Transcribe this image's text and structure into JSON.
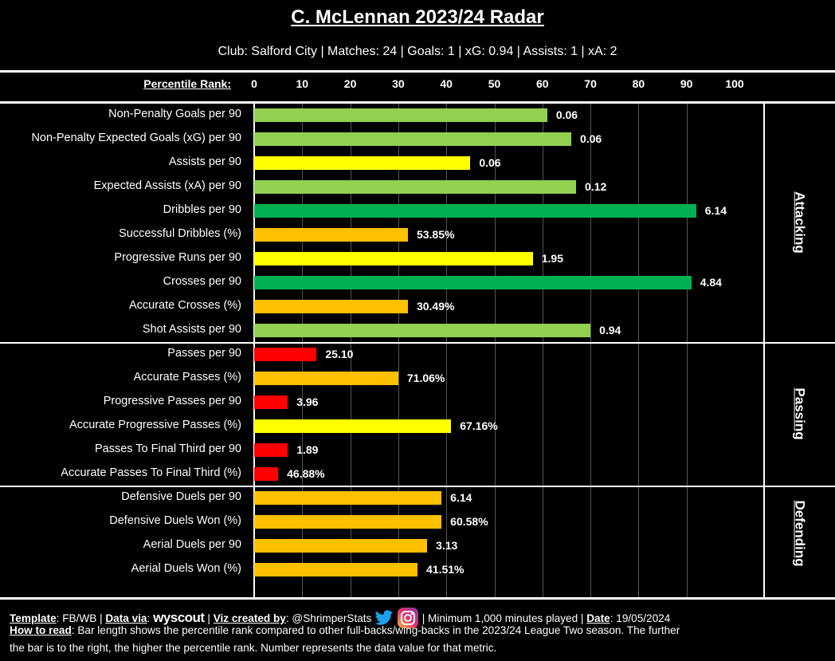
{
  "header": {
    "title": "C. McLennan 2023/24 Radar",
    "subtitle": "Club: Salford City | Matches: 24 | Goals: 1 | xG: 0.94 | Assists: 1 | xA: 2"
  },
  "colors": {
    "light_green": "#92d050",
    "yellow": "#ffff00",
    "dark_green": "#00b050",
    "orange": "#ffc000",
    "red": "#ff0000"
  },
  "chart_data": {
    "type": "bar",
    "orientation": "horizontal",
    "xlabel": "Percentile Rank:",
    "xlim": [
      0,
      100
    ],
    "ticks": [
      "0",
      "10",
      "20",
      "30",
      "40",
      "50",
      "60",
      "70",
      "80",
      "90",
      "100"
    ],
    "sections": [
      {
        "name": "Attacking",
        "rows": [
          {
            "label": "Non-Penalty Goals per 90",
            "percentile": 61,
            "value": "0.06",
            "color": "#92d050"
          },
          {
            "label": "Non-Penalty Expected Goals (xG) per 90",
            "percentile": 66,
            "value": "0.06",
            "color": "#92d050"
          },
          {
            "label": "Assists per 90",
            "percentile": 45,
            "value": "0.06",
            "color": "#ffff00"
          },
          {
            "label": "Expected Assists (xA) per 90",
            "percentile": 67,
            "value": "0.12",
            "color": "#92d050"
          },
          {
            "label": "Dribbles per 90",
            "percentile": 92,
            "value": "6.14",
            "color": "#00b050"
          },
          {
            "label": "Successful Dribbles (%)",
            "percentile": 32,
            "value": "53.85%",
            "color": "#ffc000"
          },
          {
            "label": "Progressive Runs per 90",
            "percentile": 58,
            "value": "1.95",
            "color": "#ffff00"
          },
          {
            "label": "Crosses per 90",
            "percentile": 91,
            "value": "4.84",
            "color": "#00b050"
          },
          {
            "label": "Accurate Crosses (%)",
            "percentile": 32,
            "value": "30.49%",
            "color": "#ffc000"
          },
          {
            "label": "Shot Assists per 90",
            "percentile": 70,
            "value": "0.94",
            "color": "#92d050"
          }
        ]
      },
      {
        "name": "Passing",
        "rows": [
          {
            "label": "Passes per 90",
            "percentile": 13,
            "value": "25.10",
            "color": "#ff0000"
          },
          {
            "label": "Accurate Passes (%)",
            "percentile": 30,
            "value": "71.06%",
            "color": "#ffc000"
          },
          {
            "label": "Progressive Passes per 90",
            "percentile": 7,
            "value": "3.96",
            "color": "#ff0000"
          },
          {
            "label": "Accurate Progressive Passes (%)",
            "percentile": 41,
            "value": "67.16%",
            "color": "#ffff00"
          },
          {
            "label": "Passes To Final Third per 90",
            "percentile": 7,
            "value": "1.89",
            "color": "#ff0000"
          },
          {
            "label": "Accurate Passes To Final Third (%)",
            "percentile": 5,
            "value": "46.88%",
            "color": "#ff0000"
          }
        ]
      },
      {
        "name": "Defending",
        "rows": [
          {
            "label": "Defensive Duels per 90",
            "percentile": 39,
            "value": "6.14",
            "color": "#ffc000"
          },
          {
            "label": "Defensive Duels Won (%)",
            "percentile": 39,
            "value": "60.58%",
            "color": "#ffc000"
          },
          {
            "label": "Aerial Duels per 90",
            "percentile": 36,
            "value": "3.13",
            "color": "#ffc000"
          },
          {
            "label": "Aerial Duels Won (%)",
            "percentile": 34,
            "value": "41.51%",
            "color": "#ffc000"
          }
        ]
      }
    ]
  },
  "footer": {
    "template_label": "Template",
    "template": ": FB/WB | ",
    "data_label": "Data via",
    "data_sep": ": ",
    "data_source": "wyscout",
    "viz_sep": " | ",
    "viz_label": "Viz created by",
    "viz": ": @ShrimperStats ",
    "minimum": " | Minimum 1,000 minutes played | ",
    "date_label": "Date",
    "date": ": 19/05/2024",
    "howto_label": "How to read",
    "howto1": ": Bar length shows the percentile rank compared to other full-backs/wing-backs in the 2023/24 League Two season. The further",
    "howto2": "the bar is to the right, the higher the percentile rank. Number represents the data value for that metric."
  }
}
